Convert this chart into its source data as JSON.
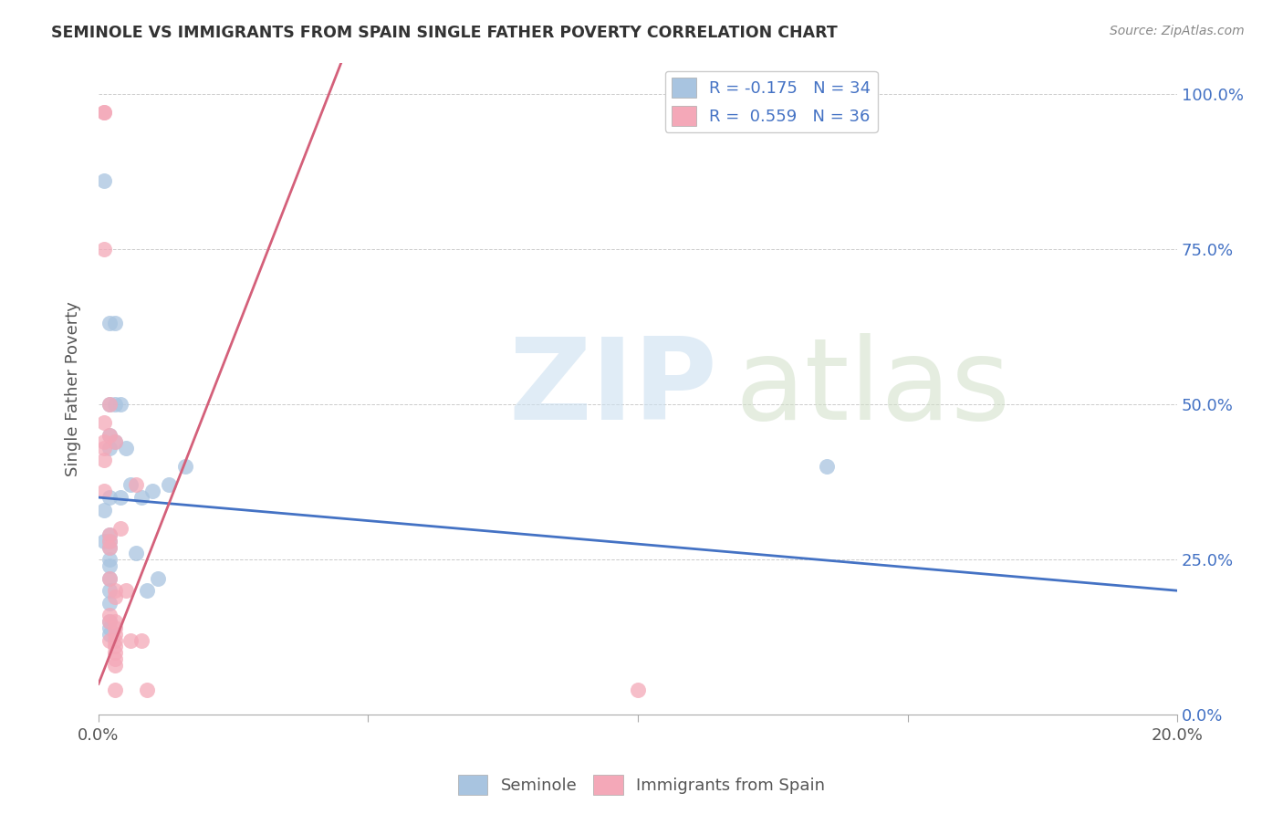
{
  "title": "SEMINOLE VS IMMIGRANTS FROM SPAIN SINGLE FATHER POVERTY CORRELATION CHART",
  "source": "Source: ZipAtlas.com",
  "ylabel": "Single Father Poverty",
  "seminole_color": "#a8c4e0",
  "spain_color": "#f4a8b8",
  "seminole_line_color": "#4472c4",
  "spain_line_color": "#d4607a",
  "legend_seminole": "R = -0.175   N = 34",
  "legend_spain": "R =  0.559   N = 36",
  "xlim": [
    0.0,
    0.2
  ],
  "ylim": [
    0.0,
    1.05
  ],
  "xticks": [
    0.0,
    0.05,
    0.1,
    0.15,
    0.2
  ],
  "xticklabels": [
    "0.0%",
    "",
    "",
    "",
    "20.0%"
  ],
  "yticks": [
    0.0,
    0.25,
    0.5,
    0.75,
    1.0
  ],
  "yticklabels_right": [
    "0.0%",
    "25.0%",
    "50.0%",
    "75.0%",
    "100.0%"
  ],
  "seminole_data": [
    [
      0.001,
      0.86
    ],
    [
      0.001,
      0.33
    ],
    [
      0.001,
      0.28
    ],
    [
      0.002,
      0.63
    ],
    [
      0.002,
      0.5
    ],
    [
      0.002,
      0.45
    ],
    [
      0.002,
      0.43
    ],
    [
      0.002,
      0.35
    ],
    [
      0.002,
      0.29
    ],
    [
      0.002,
      0.28
    ],
    [
      0.002,
      0.27
    ],
    [
      0.002,
      0.25
    ],
    [
      0.002,
      0.24
    ],
    [
      0.002,
      0.22
    ],
    [
      0.002,
      0.2
    ],
    [
      0.002,
      0.18
    ],
    [
      0.002,
      0.15
    ],
    [
      0.002,
      0.14
    ],
    [
      0.002,
      0.13
    ],
    [
      0.003,
      0.63
    ],
    [
      0.003,
      0.5
    ],
    [
      0.003,
      0.44
    ],
    [
      0.004,
      0.5
    ],
    [
      0.004,
      0.35
    ],
    [
      0.005,
      0.43
    ],
    [
      0.006,
      0.37
    ],
    [
      0.007,
      0.26
    ],
    [
      0.008,
      0.35
    ],
    [
      0.009,
      0.2
    ],
    [
      0.01,
      0.36
    ],
    [
      0.011,
      0.22
    ],
    [
      0.013,
      0.37
    ],
    [
      0.016,
      0.4
    ],
    [
      0.135,
      0.4
    ]
  ],
  "spain_data": [
    [
      0.001,
      0.97
    ],
    [
      0.001,
      0.97
    ],
    [
      0.001,
      0.75
    ],
    [
      0.001,
      0.47
    ],
    [
      0.001,
      0.44
    ],
    [
      0.001,
      0.43
    ],
    [
      0.001,
      0.41
    ],
    [
      0.001,
      0.36
    ],
    [
      0.002,
      0.5
    ],
    [
      0.002,
      0.45
    ],
    [
      0.002,
      0.29
    ],
    [
      0.002,
      0.28
    ],
    [
      0.002,
      0.27
    ],
    [
      0.002,
      0.22
    ],
    [
      0.002,
      0.16
    ],
    [
      0.002,
      0.15
    ],
    [
      0.002,
      0.12
    ],
    [
      0.003,
      0.44
    ],
    [
      0.003,
      0.2
    ],
    [
      0.003,
      0.19
    ],
    [
      0.003,
      0.15
    ],
    [
      0.003,
      0.14
    ],
    [
      0.003,
      0.13
    ],
    [
      0.003,
      0.12
    ],
    [
      0.003,
      0.11
    ],
    [
      0.003,
      0.1
    ],
    [
      0.003,
      0.09
    ],
    [
      0.003,
      0.08
    ],
    [
      0.003,
      0.04
    ],
    [
      0.004,
      0.3
    ],
    [
      0.005,
      0.2
    ],
    [
      0.006,
      0.12
    ],
    [
      0.007,
      0.37
    ],
    [
      0.008,
      0.12
    ],
    [
      0.009,
      0.04
    ],
    [
      0.1,
      0.04
    ]
  ],
  "seminole_line_x": [
    0.0,
    0.2
  ],
  "seminole_line_y": [
    0.35,
    0.2
  ],
  "spain_line_x": [
    0.0,
    0.045
  ],
  "spain_line_y": [
    0.05,
    1.05
  ]
}
